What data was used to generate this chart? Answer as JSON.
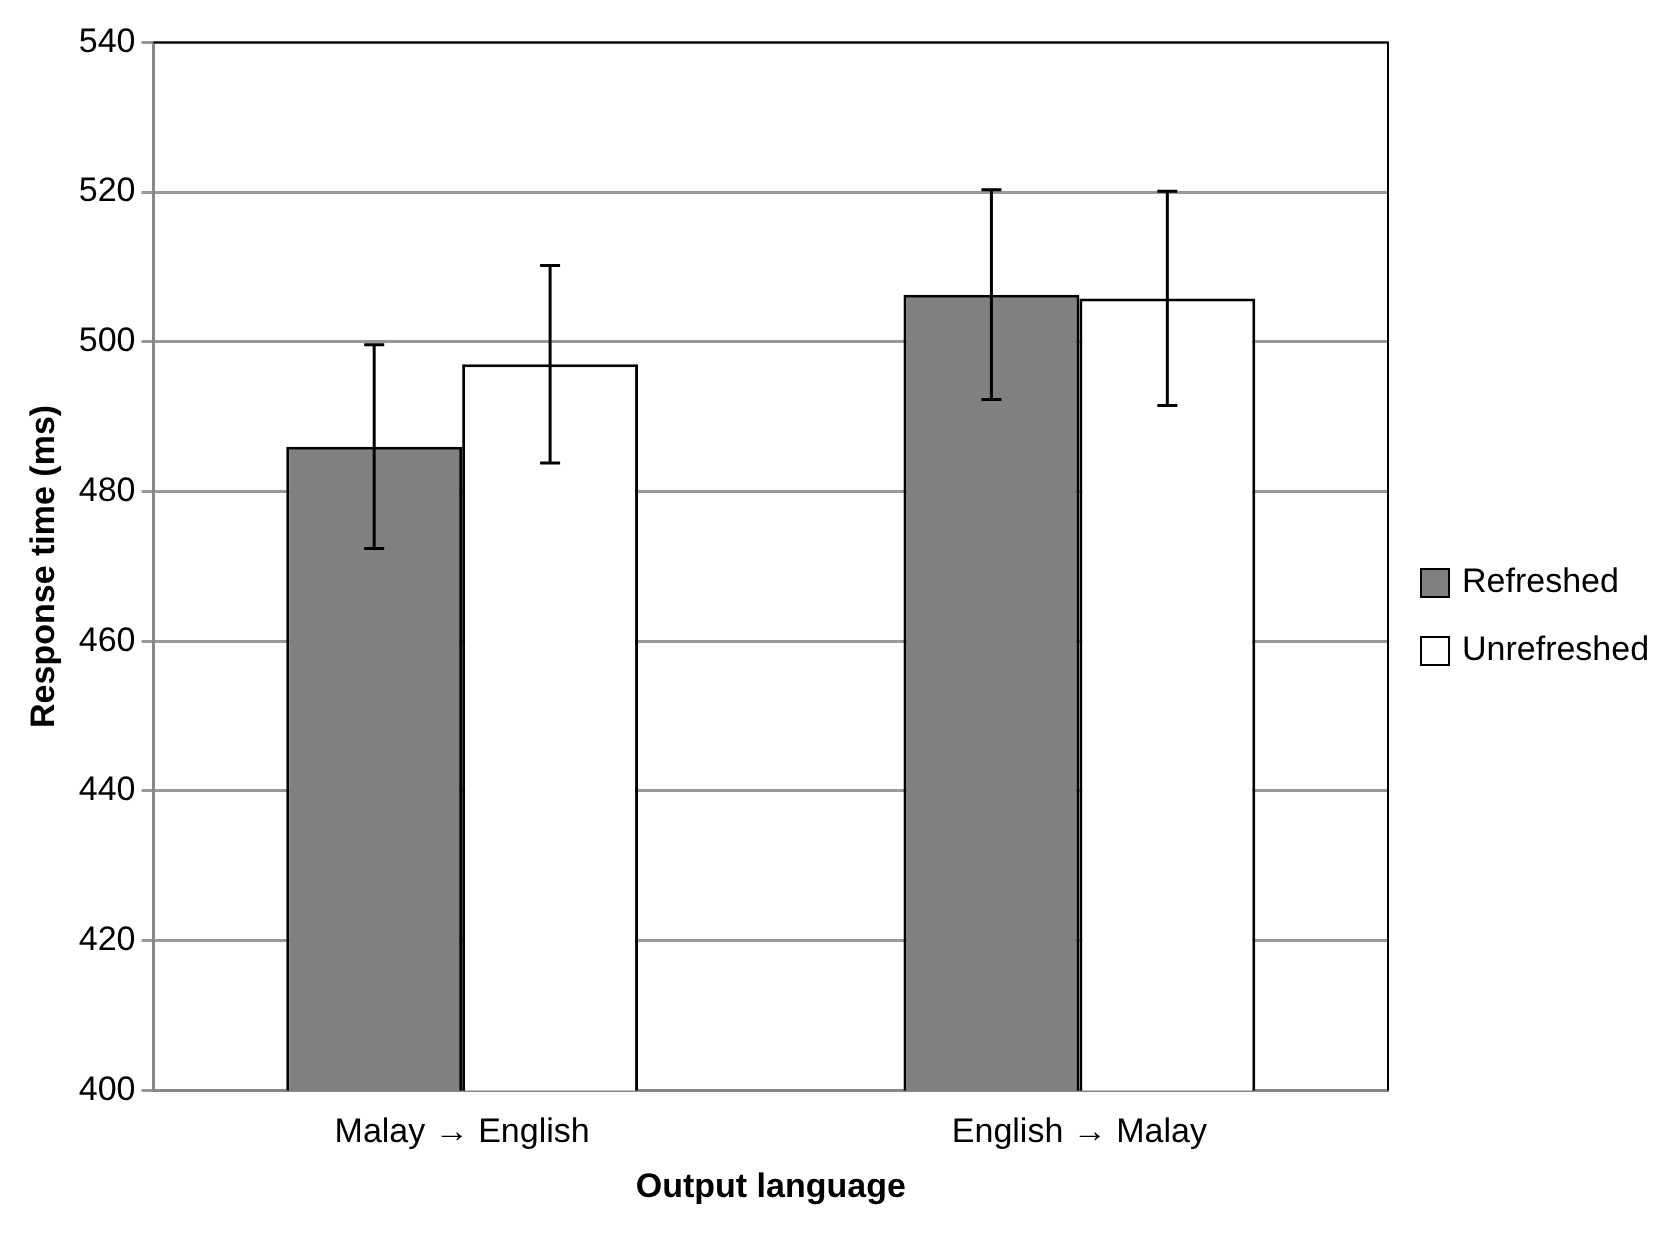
{
  "chart_data": {
    "type": "bar",
    "xlabel": "Output language",
    "ylabel": "Response time (ms)",
    "categories": [
      "Malay → English",
      "English → Malay"
    ],
    "series": [
      {
        "name": "Refreshed",
        "color": "#808080",
        "values": [
          486.0,
          506.3
        ],
        "errors": [
          13.6,
          14.0
        ]
      },
      {
        "name": "Unrefreshed",
        "color": "#ffffff",
        "values": [
          497.0,
          505.8
        ],
        "errors": [
          13.2,
          14.3
        ]
      }
    ],
    "ylim": [
      400,
      540
    ],
    "yticks": [
      400,
      420,
      440,
      460,
      480,
      500,
      520,
      540
    ],
    "grid": "y",
    "legend": "right"
  }
}
